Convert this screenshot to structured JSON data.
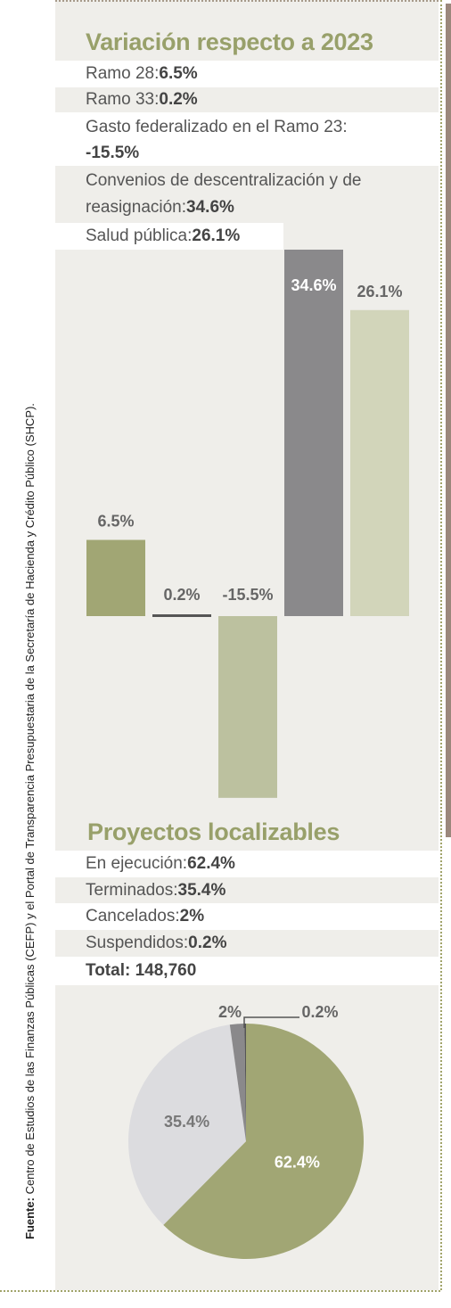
{
  "source": {
    "label": "Fuente:",
    "text": " Centro de Estudios de las Finanzas Públicas (CEFP) y el Portal de Transparencia Presupuestaria de la Secretaría de Hacienda y Crédito Público (SHCP)."
  },
  "section1": {
    "title": "Variación respecto a 2023",
    "rows": [
      {
        "name": "Ramo 28:",
        "value": "6.5%"
      },
      {
        "name": "Ramo 33:",
        "value": "0.2%"
      },
      {
        "name": "Gasto federalizado en el Ramo 23:",
        "value": "-15.5%"
      },
      {
        "name": "Convenios de descentralización y de",
        "name2": "reasignación:",
        "value": "34.6%"
      },
      {
        "name": "Salud pública:",
        "value": "26.1%"
      }
    ]
  },
  "section2": {
    "title": "Proyectos localizables",
    "rows": [
      {
        "name": "En ejecución:",
        "value": "62.4%"
      },
      {
        "name": "Terminados:",
        "value": "35.4%"
      },
      {
        "name": "Cancelados:",
        "value": "2%"
      },
      {
        "name": "Suspendidos:",
        "value": "0.2%"
      }
    ],
    "total_label": "Total:",
    "total_value": "148,760"
  },
  "colors": {
    "olive": "#a1a674",
    "olive_light": "#bcc19f",
    "olive_pale": "#d2d5ba",
    "gray": "#8a898b",
    "dark": "#555555",
    "pie_light": "#dcdcdf"
  },
  "chart_data": [
    {
      "type": "bar",
      "title": "",
      "categories": [
        "Ramo 28",
        "Ramo 33",
        "Gasto federalizado en el Ramo 23",
        "Convenios de descentralización y de reasignación",
        "Salud pública"
      ],
      "values": [
        6.5,
        0.2,
        -15.5,
        34.6,
        26.1
      ],
      "labels": [
        "6.5%",
        "0.2%",
        "-15.5%",
        "34.6%",
        "26.1%"
      ],
      "colors": [
        "#a1a674",
        "#555555",
        "#bcc19f",
        "#8a898b",
        "#d2d5ba"
      ]
    },
    {
      "type": "pie",
      "title": "",
      "categories": [
        "En ejecución",
        "Terminados",
        "Cancelados",
        "Suspendidos"
      ],
      "values": [
        62.4,
        35.4,
        2,
        0.2
      ],
      "labels": [
        "62.4%",
        "35.4%",
        "2%",
        "0.2%"
      ],
      "colors": [
        "#a1a674",
        "#dcdcdf",
        "#8a898b",
        "#555555"
      ]
    }
  ]
}
